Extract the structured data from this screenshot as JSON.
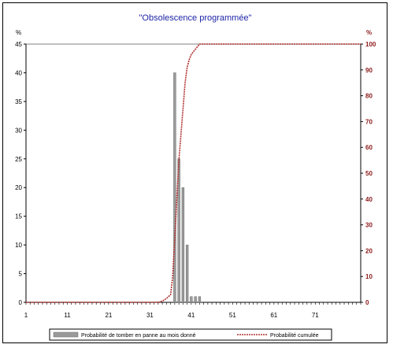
{
  "chart_data": {
    "type": "bar+line",
    "title": "\"Obsolescence programmée\"",
    "y_left_unit": "%",
    "y_right_unit": "%",
    "x_ticks": [
      1,
      11,
      21,
      31,
      41,
      51,
      61,
      71
    ],
    "xlim": [
      1,
      82
    ],
    "ylim_left": [
      0,
      45
    ],
    "ylim_right": [
      0,
      100
    ],
    "y_left_ticks": [
      0,
      5,
      10,
      15,
      20,
      25,
      30,
      35,
      40,
      45
    ],
    "y_right_ticks": [
      0,
      10,
      20,
      30,
      40,
      50,
      60,
      70,
      80,
      90,
      100
    ],
    "grid": false,
    "legend_position": "bottom",
    "series": [
      {
        "name": "Probabilité de tomber en panne au mois donné",
        "type": "bar",
        "axis": "left",
        "color": "#9a9a9a",
        "x": [
          37,
          38,
          39,
          40,
          41,
          42,
          43
        ],
        "values": [
          40,
          25,
          20,
          10,
          1,
          1,
          1
        ]
      },
      {
        "name": "Probabilité cumulée",
        "type": "line",
        "axis": "right",
        "color": "#b03030",
        "x": [
          1,
          33,
          34,
          35,
          36,
          36.5,
          37,
          37.5,
          38,
          38.5,
          39,
          39.5,
          40,
          40.5,
          41,
          42,
          43,
          82
        ],
        "values": [
          0,
          0,
          0.5,
          1.5,
          3,
          10,
          25,
          40,
          55,
          65,
          75,
          85,
          91,
          94,
          96,
          98,
          100,
          100
        ]
      }
    ]
  },
  "colors": {
    "title": "#1d24a5",
    "bars": "#9a9a9a",
    "line": "#b03030",
    "right_axis_labels": "#8b1a1a"
  }
}
